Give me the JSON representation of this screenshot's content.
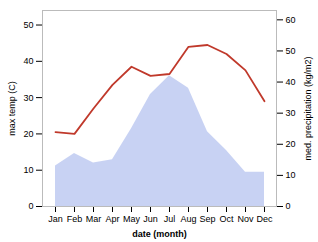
{
  "chart_data": {
    "type": "line",
    "categories": [
      "Jan",
      "Feb",
      "Mar",
      "Apr",
      "May",
      "Jun",
      "Jul",
      "Aug",
      "Sep",
      "Oct",
      "Nov",
      "Dec"
    ],
    "series": [
      {
        "type": "area",
        "axis": "y2",
        "color": "#b0bfee",
        "values": [
          13,
          17,
          14,
          15,
          25,
          36,
          42,
          38,
          24,
          18,
          11,
          11
        ]
      },
      {
        "type": "line",
        "color": "#c0392b",
        "values": [
          20.5,
          20.0,
          27.0,
          33.5,
          38.5,
          36.0,
          36.5,
          44.0,
          44.5,
          42.0,
          37.5,
          29.0
        ]
      }
    ],
    "xlabel": "date (month)",
    "ylabel": "max temp (C)",
    "y2label": "med. precipitation (kg/m2)",
    "ylim": [
      0,
      54
    ],
    "yticks": [
      0,
      10,
      20,
      30,
      40,
      50
    ],
    "y2lim": [
      0,
      63
    ],
    "y2ticks": [
      0,
      10,
      20,
      30,
      40,
      50,
      60
    ],
    "grid": false
  }
}
